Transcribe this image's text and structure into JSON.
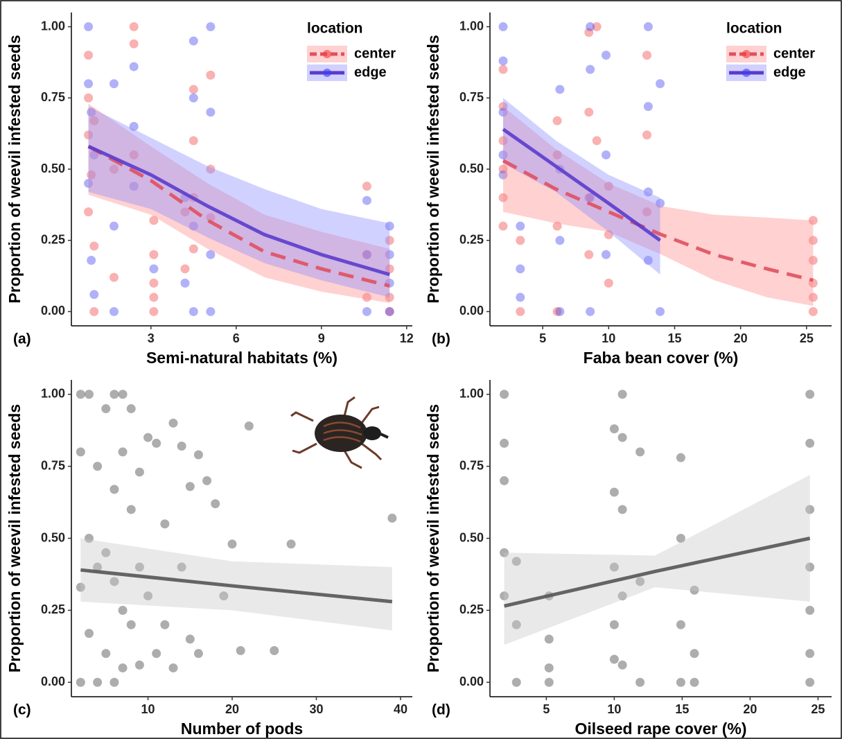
{
  "chart_data": [
    {
      "type": "scatter",
      "panel_label": "(a)",
      "x_label": "Semi-natural habitats (%)",
      "y_label": "Proportion of weevil infested seeds",
      "xlim": [
        0.2,
        12.2
      ],
      "ylim": [
        -0.05,
        1.05
      ],
      "xticks": [
        3,
        6,
        9,
        12
      ],
      "yticks": [
        {
          "value": 0,
          "label": "0.00"
        },
        {
          "value": 0.25,
          "label": "0.25"
        },
        {
          "value": 0.5,
          "label": "0.50"
        },
        {
          "value": 0.75,
          "label": "0.75"
        },
        {
          "value": 1,
          "label": "1.00"
        }
      ],
      "legend_title": "location",
      "legend_position": "top-right",
      "series": [
        {
          "name": "center",
          "color": "#f03c3c",
          "band_color": "#ff8c8c",
          "line_color": "#e0505e",
          "x": [
            0.8,
            0.8,
            0.8,
            0.8,
            0.9,
            1.0,
            1.0,
            1.0,
            1.7,
            1.7,
            2.4,
            2.4,
            2.4,
            3.1,
            3.1,
            3.1,
            3.1,
            3.1,
            4.2,
            4.2,
            4.5,
            4.5,
            4.5,
            4.5,
            5.1,
            5.1,
            5.1,
            10.6,
            10.6,
            10.6,
            11.4,
            11.4,
            11.4,
            11.4
          ],
          "values": [
            0.9,
            0.75,
            0.62,
            0.35,
            0.48,
            0.67,
            0.23,
            0,
            0.5,
            0.12,
            1.0,
            0.94,
            0.55,
            0.32,
            0.2,
            0.1,
            0.05,
            0,
            0.35,
            0.15,
            0.78,
            0.6,
            0.4,
            0.22,
            0.83,
            0.5,
            0.33,
            0.44,
            0.2,
            0.05,
            0.25,
            0.15,
            0.05,
            0
          ],
          "fit": {
            "dash": true,
            "x": [
              0.8,
              3,
              5,
              7,
              9,
              11.4
            ],
            "values": [
              0.58,
              0.46,
              0.32,
              0.21,
              0.15,
              0.09
            ],
            "lower": [
              0.41,
              0.34,
              0.22,
              0.12,
              0.07,
              0.03
            ],
            "upper": [
              0.73,
              0.58,
              0.45,
              0.34,
              0.28,
              0.22
            ]
          }
        },
        {
          "name": "edge",
          "color": "#3c3cf0",
          "band_color": "#8c8cff",
          "line_color": "#5a3ccc",
          "x": [
            0.8,
            0.8,
            0.8,
            0.9,
            0.9,
            1.0,
            1.0,
            1.7,
            1.7,
            1.7,
            2.4,
            2.4,
            2.4,
            3.1,
            4.2,
            4.2,
            4.5,
            4.5,
            4.5,
            4.5,
            5.1,
            5.1,
            5.1,
            5.1,
            10.6,
            10.6,
            10.6,
            11.4,
            11.4,
            11.4,
            11.4
          ],
          "values": [
            1.0,
            0.8,
            0.45,
            0.7,
            0.18,
            0.55,
            0.06,
            0.8,
            0.3,
            0,
            0.86,
            0.65,
            0.44,
            0.15,
            0.4,
            0.1,
            0.95,
            0.75,
            0.3,
            0,
            1.0,
            0.7,
            0.2,
            0,
            0.39,
            0.2,
            0,
            0.3,
            0.2,
            0.1,
            0
          ],
          "fit": {
            "dash": false,
            "x": [
              0.8,
              3,
              5,
              7,
              9,
              11.4
            ],
            "values": [
              0.58,
              0.48,
              0.37,
              0.27,
              0.2,
              0.13
            ],
            "lower": [
              0.42,
              0.36,
              0.26,
              0.17,
              0.11,
              0.05
            ],
            "upper": [
              0.72,
              0.61,
              0.51,
              0.43,
              0.36,
              0.31
            ]
          }
        }
      ]
    },
    {
      "type": "scatter",
      "panel_label": "(b)",
      "x_label": "Faba bean cover (%)",
      "y_label": "Proportion of weevil infested seeds",
      "xlim": [
        1,
        26.9
      ],
      "ylim": [
        -0.05,
        1.05
      ],
      "xticks": [
        5,
        10,
        15,
        20,
        25
      ],
      "yticks": [
        {
          "value": 0,
          "label": "0.00"
        },
        {
          "value": 0.25,
          "label": "0.25"
        },
        {
          "value": 0.5,
          "label": "0.50"
        },
        {
          "value": 0.75,
          "label": "0.75"
        },
        {
          "value": 1,
          "label": "1.00"
        }
      ],
      "legend_title": "location",
      "legend_position": "top-right",
      "series": [
        {
          "name": "center",
          "color": "#f03c3c",
          "band_color": "#ff8c8c",
          "line_color": "#e0505e",
          "x": [
            2,
            2,
            2,
            2,
            2,
            2,
            3.3,
            3.3,
            6.1,
            6.1,
            6.1,
            6.1,
            8.5,
            8.5,
            8.5,
            8.5,
            9.1,
            9.1,
            10,
            10,
            10,
            12.9,
            12.9,
            12.9,
            25.5,
            25.5,
            25.5,
            25.5,
            25.5,
            25.5
          ],
          "values": [
            0.85,
            0.72,
            0.6,
            0.5,
            0.4,
            0.3,
            0.25,
            0,
            0.67,
            0.55,
            0.3,
            0,
            0.98,
            0.7,
            0.4,
            0.2,
            1.0,
            0.6,
            0.44,
            0.27,
            0.1,
            0.9,
            0.62,
            0.35,
            0.32,
            0.25,
            0.18,
            0.1,
            0.05,
            0
          ],
          "fit": {
            "dash": true,
            "x": [
              2,
              6,
              10,
              14,
              18,
              22,
              25.5
            ],
            "values": [
              0.53,
              0.43,
              0.35,
              0.27,
              0.2,
              0.15,
              0.11
            ],
            "lower": [
              0.35,
              0.31,
              0.28,
              0.2,
              0.11,
              0.05,
              0.02
            ],
            "upper": [
              0.72,
              0.57,
              0.45,
              0.37,
              0.34,
              0.33,
              0.32
            ]
          }
        },
        {
          "name": "edge",
          "color": "#3c3cf0",
          "band_color": "#8c8cff",
          "line_color": "#5a3ccc",
          "x": [
            2,
            2,
            2,
            2,
            2,
            3.3,
            3.3,
            3.3,
            6.3,
            6.3,
            6.3,
            6.3,
            8.6,
            8.6,
            8.6,
            8.6,
            9.8,
            9.8,
            9.8,
            13,
            13,
            13,
            13,
            13.9,
            13.9,
            13.9
          ],
          "values": [
            1.0,
            0.88,
            0.7,
            0.55,
            0.48,
            0.3,
            0.15,
            0.05,
            0.78,
            0.5,
            0.25,
            0,
            1.0,
            0.85,
            0.4,
            0,
            0.9,
            0.55,
            0.2,
            1.0,
            0.72,
            0.42,
            0.18,
            0.8,
            0.38,
            0
          ],
          "fit": {
            "dash": false,
            "x": [
              2,
              6,
              10,
              13.9
            ],
            "values": [
              0.64,
              0.51,
              0.38,
              0.25
            ],
            "lower": [
              0.52,
              0.42,
              0.28,
              0.13
            ],
            "upper": [
              0.75,
              0.6,
              0.48,
              0.4
            ]
          }
        }
      ]
    },
    {
      "type": "scatter",
      "panel_label": "(c)",
      "x_label": "Number of pods",
      "y_label": "Proportion of weevil infested seeds",
      "xlim": [
        0.9,
        41.4
      ],
      "ylim": [
        -0.05,
        1.05
      ],
      "xticks": [
        10,
        20,
        30,
        40
      ],
      "yticks": [
        {
          "value": 0,
          "label": "0.00"
        },
        {
          "value": 0.25,
          "label": "0.25"
        },
        {
          "value": 0.5,
          "label": "0.50"
        },
        {
          "value": 0.75,
          "label": "0.75"
        },
        {
          "value": 1,
          "label": "1.00"
        }
      ],
      "series": [
        {
          "color": "#333333",
          "band_color": "#c8c8c8",
          "line_color": "#555555",
          "x": [
            2,
            2,
            2,
            2,
            3,
            3,
            3,
            4,
            4,
            4,
            5,
            5,
            5,
            6,
            6,
            6,
            6,
            7,
            7,
            7,
            7,
            8,
            8,
            8,
            9,
            9,
            9,
            10,
            10,
            11,
            11,
            12,
            12,
            13,
            13,
            14,
            14,
            15,
            15,
            16,
            16,
            17,
            18,
            19,
            20,
            21,
            22,
            25,
            27,
            39
          ],
          "values": [
            1.0,
            0.8,
            0.33,
            0,
            1.0,
            0.5,
            0.17,
            0.75,
            0.4,
            0,
            0.95,
            0.45,
            0.1,
            1.0,
            0.67,
            0.35,
            0,
            1.0,
            0.8,
            0.25,
            0.05,
            0.95,
            0.6,
            0.2,
            0.73,
            0.4,
            0.06,
            0.85,
            0.3,
            0.83,
            0.1,
            0.55,
            0.2,
            0.9,
            0.05,
            0.82,
            0.4,
            0.68,
            0.15,
            0.79,
            0.1,
            0.7,
            0.62,
            0.3,
            0.48,
            0.11,
            0.89,
            0.11,
            0.48,
            0.57
          ],
          "fit": {
            "dash": false,
            "x": [
              2,
              20,
              39
            ],
            "values": [
              0.39,
              0.335,
              0.28
            ],
            "lower": [
              0.28,
              0.25,
              0.18
            ],
            "upper": [
              0.5,
              0.42,
              0.4
            ]
          }
        }
      ]
    },
    {
      "type": "scatter",
      "panel_label": "(d)",
      "x_label": "Oilseed rape cover (%)",
      "y_label": "Proportion of weevil infested seeds",
      "xlim": [
        0.85,
        26
      ],
      "ylim": [
        -0.05,
        1.05
      ],
      "xticks": [
        5,
        10,
        15,
        20,
        25
      ],
      "yticks": [
        {
          "value": 0,
          "label": "0.00"
        },
        {
          "value": 0.25,
          "label": "0.25"
        },
        {
          "value": 0.5,
          "label": "0.50"
        },
        {
          "value": 0.75,
          "label": "0.75"
        },
        {
          "value": 1,
          "label": "1.00"
        }
      ],
      "series": [
        {
          "color": "#333333",
          "band_color": "#c8c8c8",
          "line_color": "#555555",
          "x": [
            1.9,
            1.9,
            1.9,
            1.9,
            1.9,
            2.8,
            2.8,
            2.8,
            5.2,
            5.2,
            5.2,
            5.2,
            10,
            10,
            10,
            10,
            10,
            10.6,
            10.6,
            10.6,
            10.6,
            10.6,
            11.9,
            11.9,
            11.9,
            14.9,
            14.9,
            14.9,
            14.9,
            15.9,
            15.9,
            15.9,
            24.4,
            24.4,
            24.4,
            24.4,
            24.4,
            24.4,
            24.4
          ],
          "values": [
            1.0,
            0.83,
            0.7,
            0.45,
            0.3,
            0.42,
            0.2,
            0,
            0.3,
            0.15,
            0.05,
            0,
            0.88,
            0.66,
            0.4,
            0.2,
            0.08,
            1.0,
            0.85,
            0.6,
            0.3,
            0.06,
            0.8,
            0.35,
            0,
            0.78,
            0.5,
            0.2,
            0,
            0.32,
            0.1,
            0,
            1.0,
            0.83,
            0.6,
            0.4,
            0.25,
            0.1,
            0
          ],
          "fit": {
            "dash": false,
            "x": [
              1.9,
              13,
              24.4
            ],
            "values": [
              0.265,
              0.385,
              0.5
            ],
            "lower": [
              0.13,
              0.33,
              0.28
            ],
            "upper": [
              0.45,
              0.44,
              0.72
            ]
          }
        }
      ]
    }
  ]
}
